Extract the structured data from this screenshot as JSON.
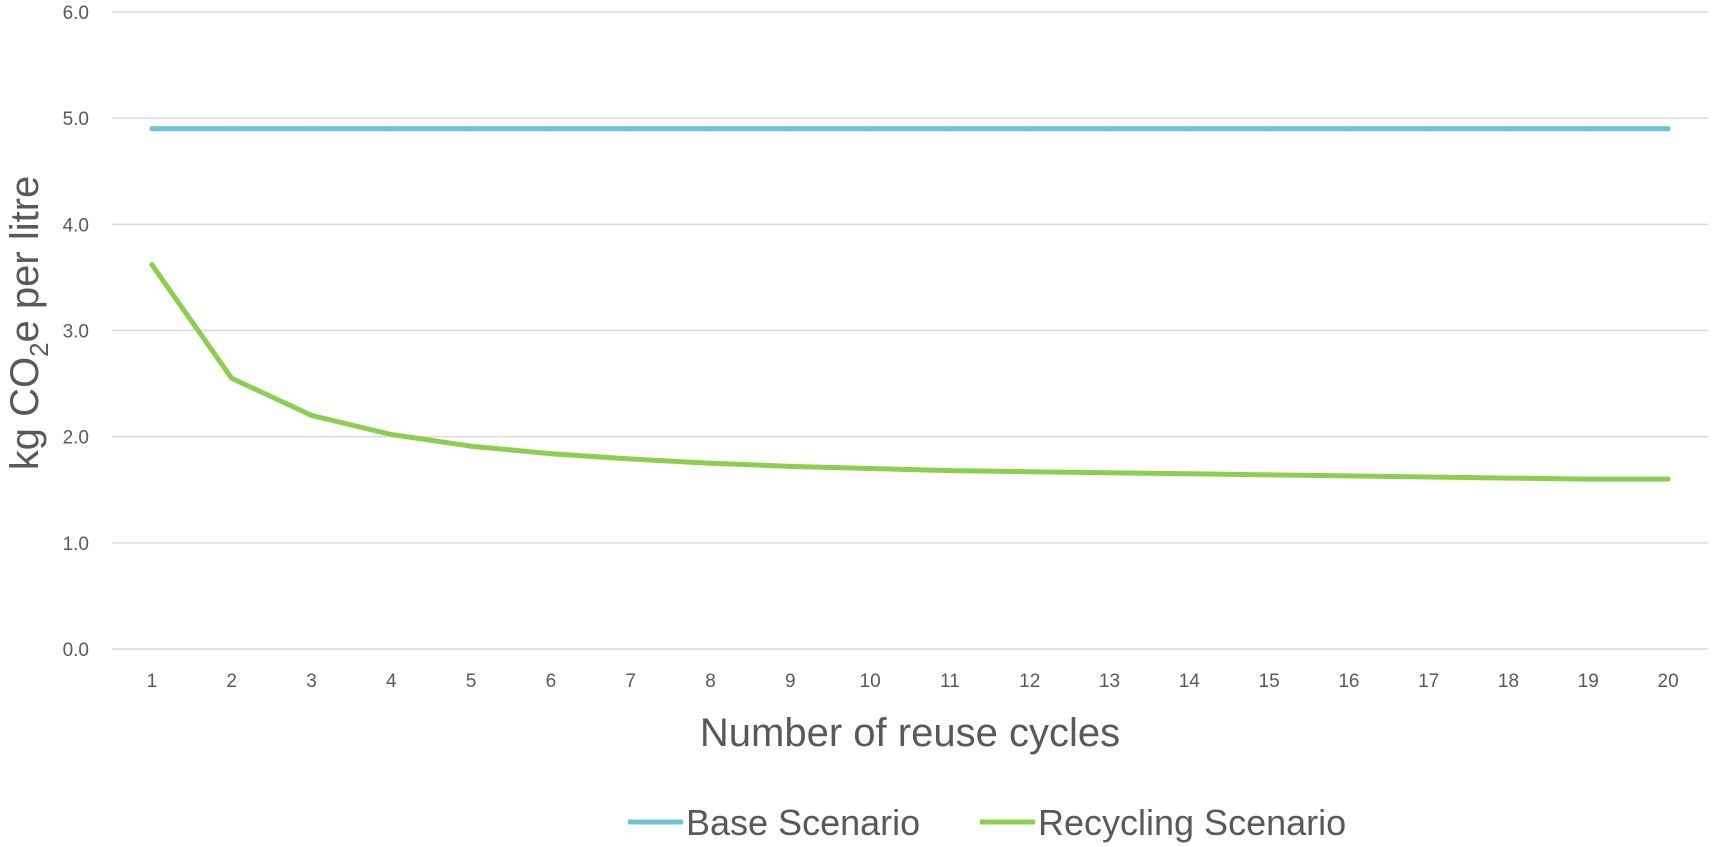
{
  "chart_data": {
    "type": "line",
    "title": "",
    "xlabel": "Number of reuse cycles",
    "ylabel": {
      "prefix": "kg CO",
      "subscript": "2",
      "suffix": "e per litre"
    },
    "categories": [
      "1",
      "2",
      "3",
      "4",
      "5",
      "6",
      "7",
      "8",
      "9",
      "10",
      "11",
      "12",
      "13",
      "14",
      "15",
      "16",
      "17",
      "18",
      "19",
      "20"
    ],
    "ylim": [
      0,
      6
    ],
    "yticks": [
      "0.0",
      "1.0",
      "2.0",
      "3.0",
      "4.0",
      "5.0",
      "6.0"
    ],
    "grid": true,
    "legend_position": "bottom",
    "series": [
      {
        "name": "Base Scenario",
        "color": "#6cc4d6",
        "values": [
          4.9,
          4.9,
          4.9,
          4.9,
          4.9,
          4.9,
          4.9,
          4.9,
          4.9,
          4.9,
          4.9,
          4.9,
          4.9,
          4.9,
          4.9,
          4.9,
          4.9,
          4.9,
          4.9,
          4.9
        ]
      },
      {
        "name": "Recycling Scenario",
        "color": "#8ccf50",
        "values": [
          3.62,
          2.55,
          2.2,
          2.02,
          1.91,
          1.84,
          1.79,
          1.75,
          1.72,
          1.7,
          1.68,
          1.67,
          1.66,
          1.65,
          1.64,
          1.63,
          1.62,
          1.61,
          1.6,
          1.6
        ]
      }
    ]
  }
}
